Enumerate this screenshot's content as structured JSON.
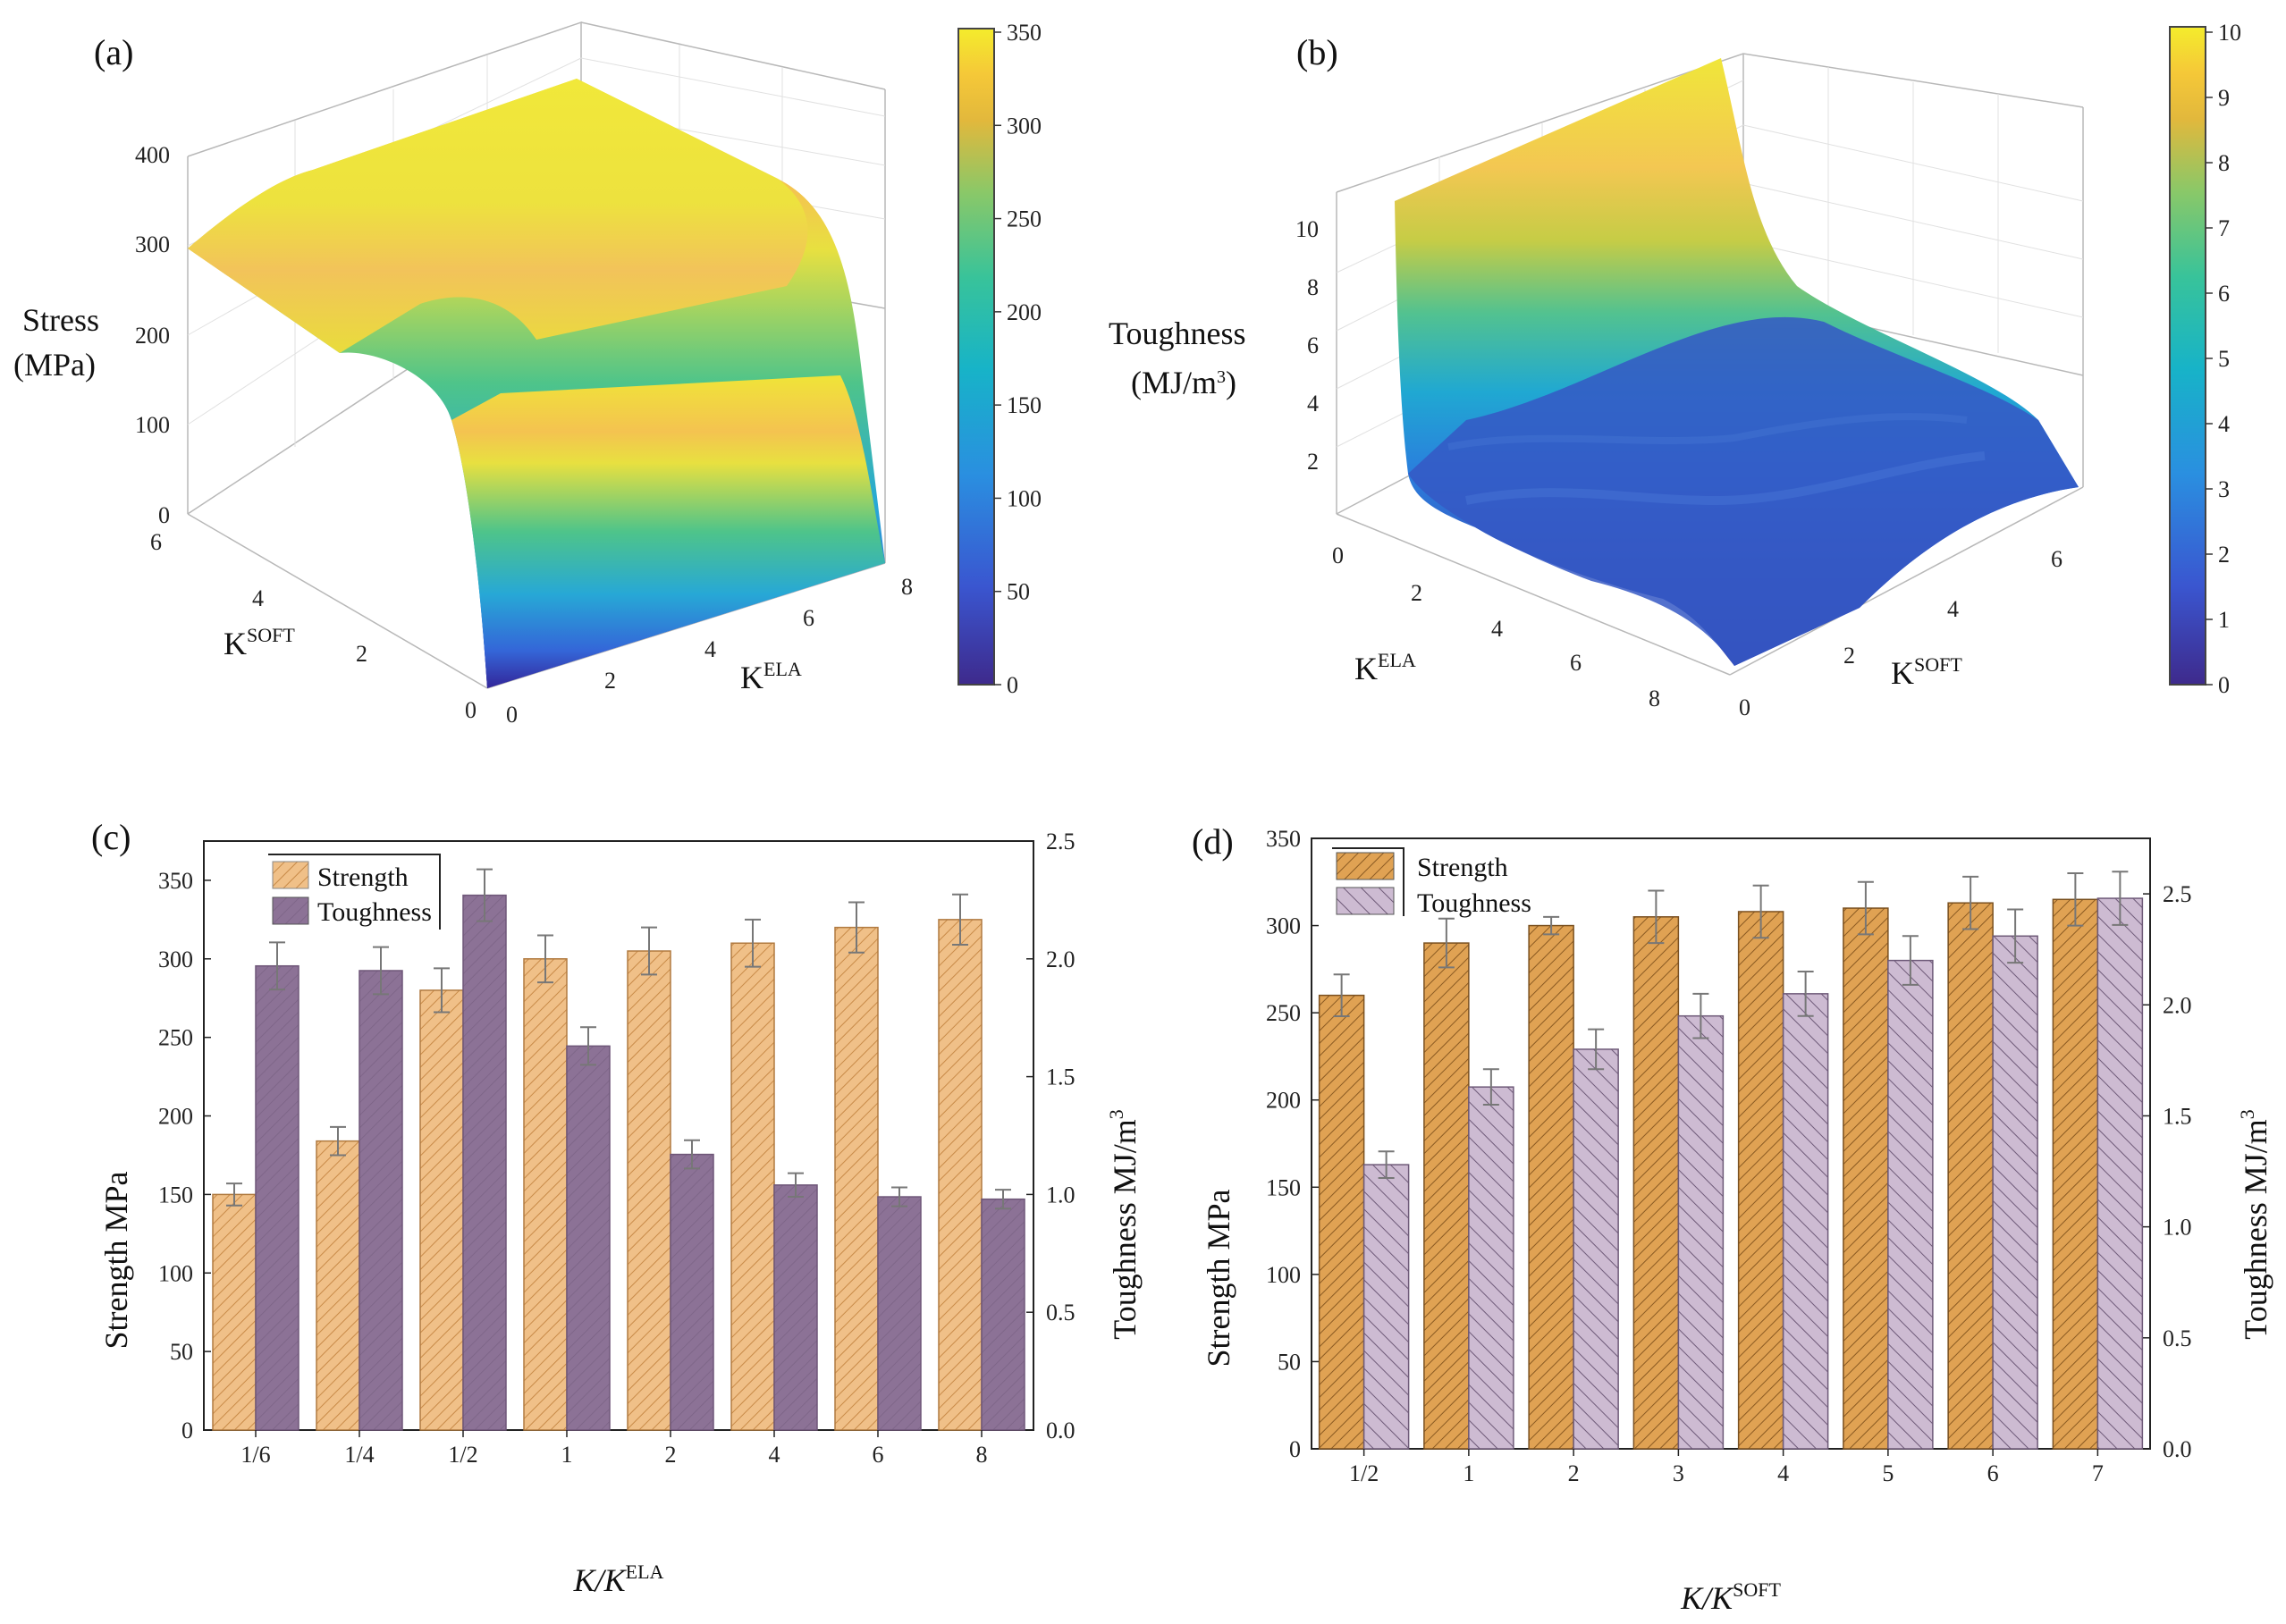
{
  "chart_data": [
    {
      "panel": "(a)",
      "type": "surface3d",
      "zlabel": "Stress",
      "zunit": "(MPa)",
      "xlabel_base": "K",
      "xlabel_sup": "SOFT",
      "ylabel_base": "K",
      "ylabel_sup": "ELA",
      "xticks": [
        "0",
        "2",
        "4",
        "6"
      ],
      "yticks": [
        "0",
        "2",
        "4",
        "6",
        "8"
      ],
      "zticks": [
        "0",
        "100",
        "200",
        "300",
        "400"
      ],
      "colorbar": {
        "ticks": [
          "0",
          "50",
          "100",
          "150",
          "200",
          "250",
          "300",
          "350"
        ]
      }
    },
    {
      "panel": "(b)",
      "type": "surface3d",
      "zlabel": "Toughness",
      "zunit": "(MJ/m",
      "zunit_sup": "3",
      "zunit_end": ")",
      "xlabel_base": "K",
      "xlabel_sup": "ELA",
      "ylabel_base": "K",
      "ylabel_sup": "SOFT",
      "xticks": [
        "0",
        "2",
        "4",
        "6",
        "8"
      ],
      "yticks": [
        "0",
        "2",
        "4",
        "6"
      ],
      "zticks": [
        "2",
        "4",
        "6",
        "8",
        "10"
      ],
      "colorbar": {
        "ticks": [
          "0",
          "1",
          "2",
          "3",
          "4",
          "5",
          "6",
          "7",
          "8",
          "9",
          "10"
        ]
      }
    },
    {
      "panel": "(c)",
      "type": "bar",
      "xlabel_base": "K/K",
      "xlabel_sup": "ELA",
      "ylabel": "Strength  MPa",
      "y2label": "Toughness MJ/m",
      "y2label_sup": "3",
      "categories": [
        "1/6",
        "1/4",
        "1/2",
        "1",
        "2",
        "4",
        "6",
        "8"
      ],
      "ylim": [
        0,
        375
      ],
      "y2lim": [
        0,
        2.5
      ],
      "yticks": [
        "0",
        "50",
        "100",
        "150",
        "200",
        "250",
        "300",
        "350"
      ],
      "y2ticks": [
        "0.0",
        "0.5",
        "1.0",
        "1.5",
        "2.0",
        "2.5"
      ],
      "series": [
        {
          "name": "Strength",
          "axis": "left",
          "values": [
            150,
            184,
            280,
            300,
            305,
            310,
            320,
            325
          ],
          "errors": [
            7,
            9,
            14,
            15,
            15,
            15,
            16,
            16
          ]
        },
        {
          "name": "Toughness",
          "axis": "right",
          "values": [
            1.97,
            1.95,
            2.27,
            1.63,
            1.17,
            1.04,
            0.99,
            0.98
          ],
          "errors": [
            0.1,
            0.1,
            0.11,
            0.08,
            0.06,
            0.05,
            0.04,
            0.04
          ]
        }
      ]
    },
    {
      "panel": "(d)",
      "type": "bar",
      "xlabel_base": "K/K",
      "xlabel_sup": "SOFT",
      "ylabel": "Strength  MPa",
      "y2label": "Toughness MJ/m",
      "y2label_sup": "3",
      "categories": [
        "1/2",
        "1",
        "2",
        "3",
        "4",
        "5",
        "6",
        "7"
      ],
      "ylim": [
        0,
        350
      ],
      "y2lim": [
        0,
        2.75
      ],
      "yticks": [
        "0",
        "50",
        "100",
        "150",
        "200",
        "250",
        "300",
        "350"
      ],
      "y2ticks": [
        "0.0",
        "0.5",
        "1.0",
        "1.5",
        "2.0",
        "2.5"
      ],
      "series": [
        {
          "name": "Strength",
          "axis": "left",
          "values": [
            260,
            290,
            300,
            305,
            308,
            310,
            313,
            315
          ],
          "errors": [
            12,
            14,
            5,
            15,
            15,
            15,
            15,
            15
          ]
        },
        {
          "name": "Toughness",
          "axis": "right",
          "values": [
            1.28,
            1.63,
            1.8,
            1.95,
            2.05,
            2.2,
            2.31,
            2.48
          ],
          "errors": [
            0.06,
            0.08,
            0.09,
            0.1,
            0.1,
            0.11,
            0.12,
            0.12
          ]
        }
      ]
    }
  ],
  "colors": {
    "strength_c": "#f0c088",
    "strength_c_hatch": "#c88a48",
    "toughness_c": "#8c7296",
    "strength_d": "#e0a253",
    "strength_d_hatch": "#8a5a22",
    "toughness_d": "#cdbbd2",
    "toughness_d_hatch": "#6e5a78",
    "error_bar": "#777777"
  }
}
